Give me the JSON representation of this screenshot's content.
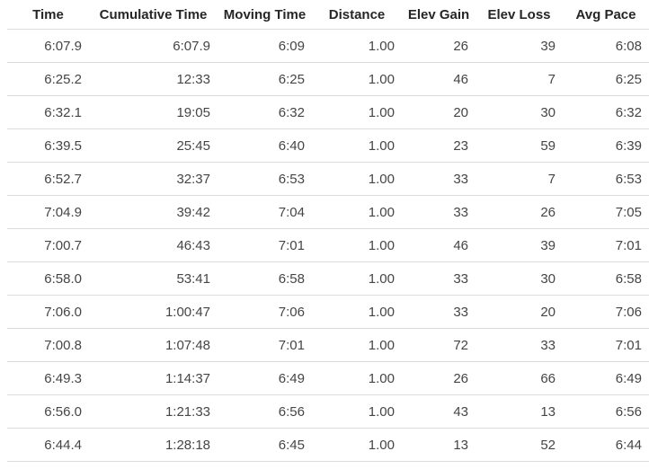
{
  "table": {
    "title": "splits-table",
    "columns": [
      {
        "label": "Time"
      },
      {
        "label": "Cumulative Time"
      },
      {
        "label": "Moving Time"
      },
      {
        "label": "Distance"
      },
      {
        "label": "Elev Gain"
      },
      {
        "label": "Elev Loss"
      },
      {
        "label": "Avg Pace"
      }
    ],
    "rows": [
      [
        "6:07.9",
        "6:07.9",
        "6:09",
        "1.00",
        "26",
        "39",
        "6:08"
      ],
      [
        "6:25.2",
        "12:33",
        "6:25",
        "1.00",
        "46",
        "7",
        "6:25"
      ],
      [
        "6:32.1",
        "19:05",
        "6:32",
        "1.00",
        "20",
        "30",
        "6:32"
      ],
      [
        "6:39.5",
        "25:45",
        "6:40",
        "1.00",
        "23",
        "59",
        "6:39"
      ],
      [
        "6:52.7",
        "32:37",
        "6:53",
        "1.00",
        "33",
        "7",
        "6:53"
      ],
      [
        "7:04.9",
        "39:42",
        "7:04",
        "1.00",
        "33",
        "26",
        "7:05"
      ],
      [
        "7:00.7",
        "46:43",
        "7:01",
        "1.00",
        "46",
        "39",
        "7:01"
      ],
      [
        "6:58.0",
        "53:41",
        "6:58",
        "1.00",
        "33",
        "30",
        "6:58"
      ],
      [
        "7:06.0",
        "1:00:47",
        "7:06",
        "1.00",
        "33",
        "20",
        "7:06"
      ],
      [
        "7:00.8",
        "1:07:48",
        "7:01",
        "1.00",
        "72",
        "33",
        "7:01"
      ],
      [
        "6:49.3",
        "1:14:37",
        "6:49",
        "1.00",
        "26",
        "66",
        "6:49"
      ],
      [
        "6:56.0",
        "1:21:33",
        "6:56",
        "1.00",
        "43",
        "13",
        "6:56"
      ],
      [
        "6:44.4",
        "1:28:18",
        "6:45",
        "1.00",
        "13",
        "52",
        "6:44"
      ]
    ]
  },
  "colors": {
    "background": "#ffffff",
    "header_text": "#262626",
    "cell_text": "#454545",
    "divider": "#dcdcdc"
  }
}
